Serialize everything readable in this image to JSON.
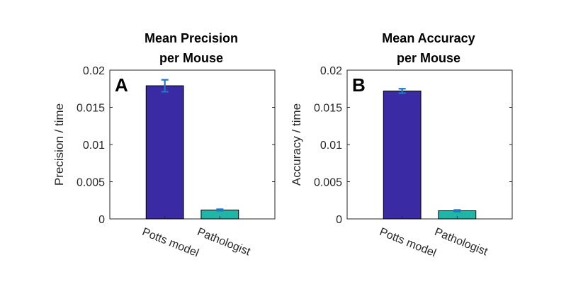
{
  "chart_data": [
    {
      "type": "bar",
      "panel_label": "A",
      "title_lines": [
        "Mean Precision",
        "per Mouse"
      ],
      "ylabel": "Precision / time",
      "categories": [
        "Potts model",
        "Pathologist"
      ],
      "values": [
        0.0179,
        0.0012
      ],
      "error_low": [
        0.0008,
        0.0001
      ],
      "error_high": [
        0.0008,
        0.0001
      ],
      "bar_colors": [
        "#3a2aa3",
        "#1fb6a8"
      ],
      "error_color": "#1f77c4",
      "ylim": [
        0,
        0.02
      ],
      "yticks": [
        0,
        0.005,
        0.01,
        0.015,
        0.02
      ],
      "ytick_labels": [
        "0",
        "0.005",
        "0.01",
        "0.015",
        "0.02"
      ],
      "grid": false
    },
    {
      "type": "bar",
      "panel_label": "B",
      "title_lines": [
        "Mean Accuracy",
        "per Mouse"
      ],
      "ylabel": "Accuracy / time",
      "categories": [
        "Potts model",
        "Pathologist"
      ],
      "values": [
        0.0172,
        0.0011
      ],
      "error_low": [
        0.0003,
        0.0001
      ],
      "error_high": [
        0.0003,
        0.0001
      ],
      "bar_colors": [
        "#3a2aa3",
        "#1fb6a8"
      ],
      "error_color": "#1f77c4",
      "ylim": [
        0,
        0.02
      ],
      "yticks": [
        0,
        0.005,
        0.01,
        0.015,
        0.02
      ],
      "ytick_labels": [
        "0",
        "0.005",
        "0.01",
        "0.015",
        "0.02"
      ],
      "grid": false
    }
  ]
}
